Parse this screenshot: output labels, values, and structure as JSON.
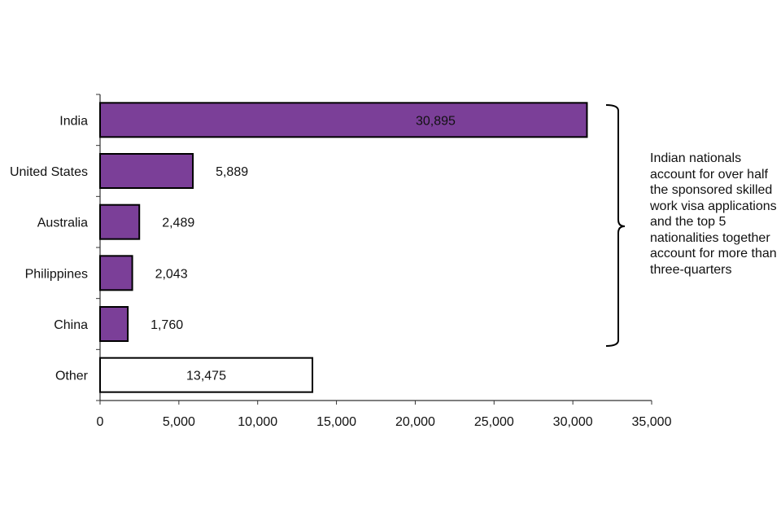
{
  "chart_data": {
    "type": "bar",
    "orientation": "horizontal",
    "title": "",
    "xlabel": "",
    "ylabel": "",
    "categories": [
      "India",
      "United States",
      "Australia",
      "Philippines",
      "China",
      "Other"
    ],
    "values": [
      30895,
      5889,
      2489,
      2043,
      1760,
      13475
    ],
    "value_labels": [
      "30,895",
      "5,889",
      "2,489",
      "2,043",
      "1,760",
      "13,475"
    ],
    "bar_colors": [
      "#7b3f98",
      "#7b3f98",
      "#7b3f98",
      "#7b3f98",
      "#7b3f98",
      "#ffffff"
    ],
    "xlim": [
      0,
      35000
    ],
    "xticks": [
      0,
      5000,
      10000,
      15000,
      20000,
      25000,
      30000,
      35000
    ],
    "xtick_labels": [
      "0",
      "5,000",
      "10,000",
      "15,000",
      "20,000",
      "25,000",
      "30,000",
      "35,000"
    ],
    "grid": false,
    "annotation": "Indian nationals account for over half the sponsored skilled work visa applications and the top 5 nationalities together account for more than three-quarters"
  }
}
